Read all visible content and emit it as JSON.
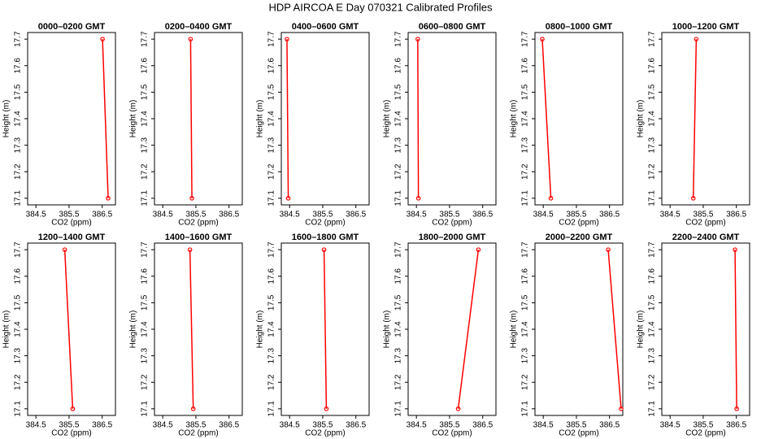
{
  "title": "HDP AIRCOA E  Day 070321  Calibrated Profiles",
  "chart_data": [
    {
      "type": "line",
      "title": "0000–0200 GMT",
      "xlabel": "CO2 (ppm)",
      "ylabel": "Height (m)",
      "color": "#ff0000",
      "x": [
        386.51,
        386.68
      ],
      "values": [
        17.7,
        17.1
      ],
      "xlim": [
        384.25,
        386.9
      ],
      "ylim": [
        17.075,
        17.725
      ],
      "xticks": [
        384.5,
        385.5,
        386.5
      ],
      "yticks": [
        17.1,
        17.2,
        17.3,
        17.4,
        17.5,
        17.6,
        17.7
      ]
    },
    {
      "type": "line",
      "title": "0200–0400 GMT",
      "xlabel": "CO2 (ppm)",
      "ylabel": "Height (m)",
      "color": "#ff0000",
      "x": [
        385.34,
        385.38
      ],
      "values": [
        17.7,
        17.1
      ],
      "xlim": [
        384.25,
        386.9
      ],
      "ylim": [
        17.075,
        17.725
      ],
      "xticks": [
        384.5,
        385.5,
        386.5
      ],
      "yticks": [
        17.1,
        17.2,
        17.3,
        17.4,
        17.5,
        17.6,
        17.7
      ]
    },
    {
      "type": "line",
      "title": "0400–0600 GMT",
      "xlabel": "CO2 (ppm)",
      "ylabel": "Height (m)",
      "color": "#ff0000",
      "x": [
        384.42,
        384.46
      ],
      "values": [
        17.7,
        17.1
      ],
      "xlim": [
        384.25,
        386.9
      ],
      "ylim": [
        17.075,
        17.725
      ],
      "xticks": [
        384.5,
        385.5,
        386.5
      ],
      "yticks": [
        17.1,
        17.2,
        17.3,
        17.4,
        17.5,
        17.6,
        17.7
      ]
    },
    {
      "type": "line",
      "title": "0600–0800 GMT",
      "xlabel": "CO2 (ppm)",
      "ylabel": "Height (m)",
      "color": "#ff0000",
      "x": [
        384.54,
        384.56
      ],
      "values": [
        17.7,
        17.1
      ],
      "xlim": [
        384.25,
        386.9
      ],
      "ylim": [
        17.075,
        17.725
      ],
      "xticks": [
        384.5,
        385.5,
        386.5
      ],
      "yticks": [
        17.1,
        17.2,
        17.3,
        17.4,
        17.5,
        17.6,
        17.7
      ]
    },
    {
      "type": "line",
      "title": "0800–1000 GMT",
      "xlabel": "CO2 (ppm)",
      "ylabel": "Height (m)",
      "color": "#ff0000",
      "x": [
        384.47,
        384.73
      ],
      "values": [
        17.7,
        17.1
      ],
      "xlim": [
        384.25,
        386.9
      ],
      "ylim": [
        17.075,
        17.725
      ],
      "xticks": [
        384.5,
        385.5,
        386.5
      ],
      "yticks": [
        17.1,
        17.2,
        17.3,
        17.4,
        17.5,
        17.6,
        17.7
      ]
    },
    {
      "type": "line",
      "title": "1000–1200 GMT",
      "xlabel": "CO2 (ppm)",
      "ylabel": "Height (m)",
      "color": "#ff0000",
      "x": [
        385.29,
        385.2
      ],
      "values": [
        17.7,
        17.1
      ],
      "xlim": [
        384.25,
        386.9
      ],
      "ylim": [
        17.075,
        17.725
      ],
      "xticks": [
        384.5,
        385.5,
        386.5
      ],
      "yticks": [
        17.1,
        17.2,
        17.3,
        17.4,
        17.5,
        17.6,
        17.7
      ]
    },
    {
      "type": "line",
      "title": "1200–1400 GMT",
      "xlabel": "CO2 (ppm)",
      "ylabel": "Height (m)",
      "color": "#ff0000",
      "x": [
        385.37,
        385.61
      ],
      "values": [
        17.7,
        17.1
      ],
      "xlim": [
        384.25,
        386.9
      ],
      "ylim": [
        17.075,
        17.725
      ],
      "xticks": [
        384.5,
        385.5,
        386.5
      ],
      "yticks": [
        17.1,
        17.2,
        17.3,
        17.4,
        17.5,
        17.6,
        17.7
      ]
    },
    {
      "type": "line",
      "title": "1400–1600 GMT",
      "xlabel": "CO2 (ppm)",
      "ylabel": "Height (m)",
      "color": "#ff0000",
      "x": [
        385.32,
        385.42
      ],
      "values": [
        17.7,
        17.1
      ],
      "xlim": [
        384.25,
        386.9
      ],
      "ylim": [
        17.075,
        17.725
      ],
      "xticks": [
        384.5,
        385.5,
        386.5
      ],
      "yticks": [
        17.1,
        17.2,
        17.3,
        17.4,
        17.5,
        17.6,
        17.7
      ]
    },
    {
      "type": "line",
      "title": "1600–1800 GMT",
      "xlabel": "CO2 (ppm)",
      "ylabel": "Height (m)",
      "color": "#ff0000",
      "x": [
        385.54,
        385.61
      ],
      "values": [
        17.7,
        17.1
      ],
      "xlim": [
        384.25,
        386.9
      ],
      "ylim": [
        17.075,
        17.725
      ],
      "xticks": [
        384.5,
        385.5,
        386.5
      ],
      "yticks": [
        17.1,
        17.2,
        17.3,
        17.4,
        17.5,
        17.6,
        17.7
      ]
    },
    {
      "type": "line",
      "title": "1800–2000 GMT",
      "xlabel": "CO2 (ppm)",
      "ylabel": "Height (m)",
      "color": "#ff0000",
      "x": [
        386.37,
        385.76
      ],
      "values": [
        17.7,
        17.1
      ],
      "xlim": [
        384.25,
        386.9
      ],
      "ylim": [
        17.075,
        17.725
      ],
      "xticks": [
        384.5,
        385.5,
        386.5
      ],
      "yticks": [
        17.1,
        17.2,
        17.3,
        17.4,
        17.5,
        17.6,
        17.7
      ]
    },
    {
      "type": "line",
      "title": "2000–2200 GMT",
      "xlabel": "CO2 (ppm)",
      "ylabel": "Height (m)",
      "color": "#ff0000",
      "x": [
        386.46,
        386.85
      ],
      "values": [
        17.7,
        17.1
      ],
      "xlim": [
        384.25,
        386.9
      ],
      "ylim": [
        17.075,
        17.725
      ],
      "xticks": [
        384.5,
        385.5,
        386.5
      ],
      "yticks": [
        17.1,
        17.2,
        17.3,
        17.4,
        17.5,
        17.6,
        17.7
      ]
    },
    {
      "type": "line",
      "title": "2200–2400 GMT",
      "xlabel": "CO2 (ppm)",
      "ylabel": "Height (m)",
      "color": "#ff0000",
      "x": [
        386.46,
        386.51
      ],
      "values": [
        17.7,
        17.1
      ],
      "xlim": [
        384.25,
        386.9
      ],
      "ylim": [
        17.075,
        17.725
      ],
      "xticks": [
        384.5,
        385.5,
        386.5
      ],
      "yticks": [
        17.1,
        17.2,
        17.3,
        17.4,
        17.5,
        17.6,
        17.7
      ]
    }
  ]
}
